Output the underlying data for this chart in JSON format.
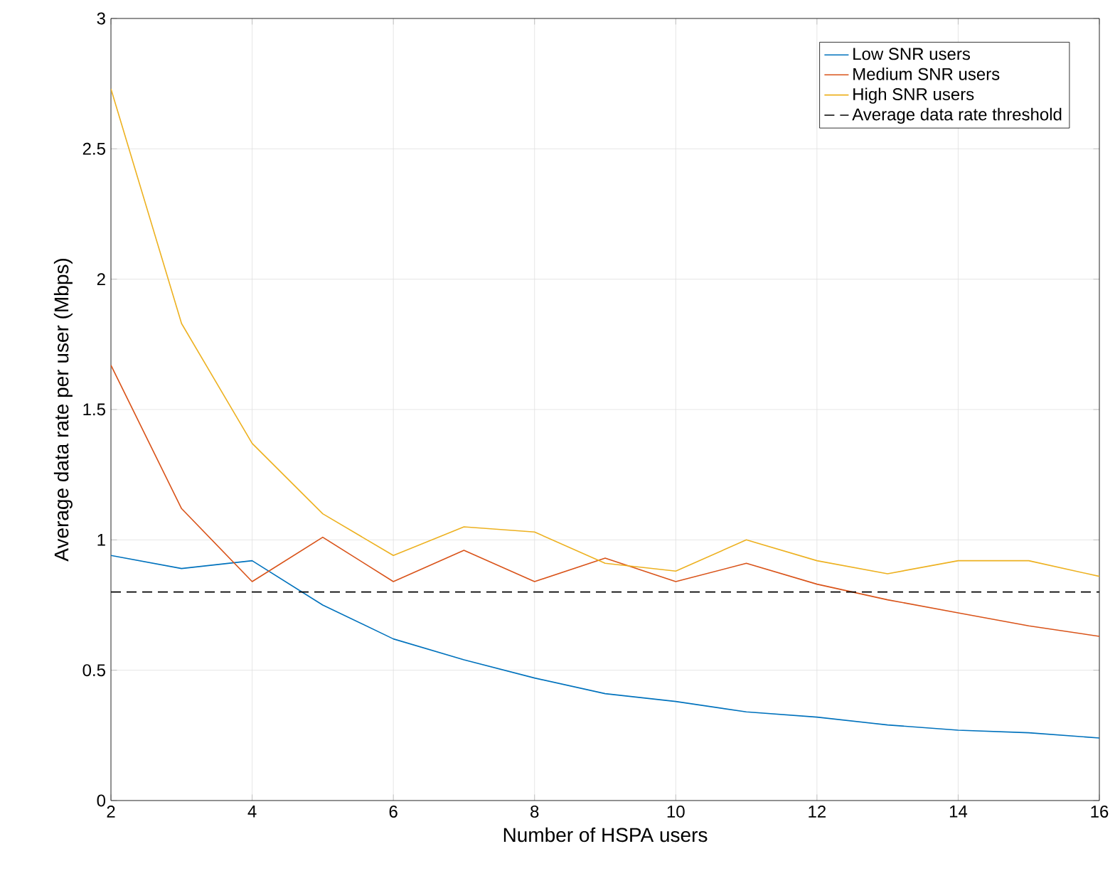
{
  "chart_data": {
    "type": "line",
    "xlabel": "Number of HSPA users",
    "ylabel": "Average data rate per user (Mbps)",
    "x": [
      2,
      3,
      4,
      5,
      6,
      7,
      8,
      9,
      10,
      11,
      12,
      13,
      14,
      15,
      16
    ],
    "series": [
      {
        "name": "Low SNR users",
        "color": "#0072bd",
        "values": [
          0.94,
          0.89,
          0.92,
          0.75,
          0.62,
          0.54,
          0.47,
          0.41,
          0.38,
          0.34,
          0.32,
          0.29,
          0.27,
          0.26,
          0.24
        ]
      },
      {
        "name": "Medium SNR users",
        "color": "#d95319",
        "values": [
          1.67,
          1.12,
          0.84,
          1.01,
          0.84,
          0.96,
          0.84,
          0.93,
          0.84,
          0.91,
          0.83,
          0.77,
          0.72,
          0.67,
          0.63
        ]
      },
      {
        "name": "High SNR users",
        "color": "#edb120",
        "values": [
          2.73,
          1.83,
          1.37,
          1.1,
          0.94,
          1.05,
          1.03,
          0.91,
          0.88,
          1.0,
          0.92,
          0.87,
          0.92,
          0.92,
          0.86
        ]
      }
    ],
    "ref_lines": [
      {
        "axis": "y",
        "value": 0.8,
        "label": "Average data rate threshold",
        "color": "#000000",
        "line_style": "dashed"
      }
    ],
    "xlim": [
      2,
      16
    ],
    "ylim": [
      0,
      3
    ],
    "xticks": [
      2,
      4,
      6,
      8,
      10,
      12,
      14,
      16
    ],
    "yticks": [
      0,
      0.5,
      1,
      1.5,
      2,
      2.5,
      3
    ],
    "grid": true,
    "legend": "top right",
    "marker": "none",
    "line_style": "solid"
  }
}
